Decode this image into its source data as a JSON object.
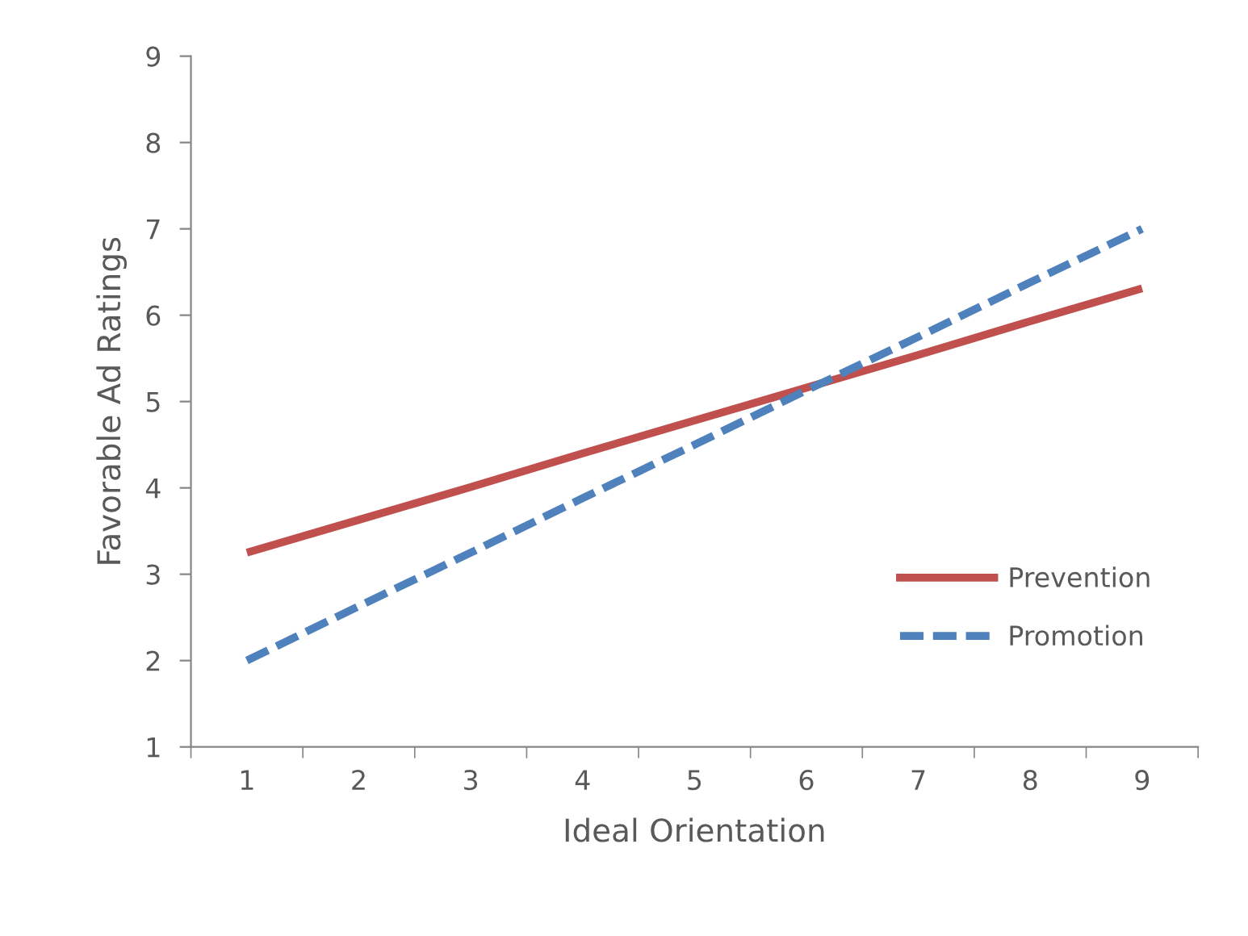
{
  "chart_data": {
    "type": "line",
    "xlabel": "Ideal Orientation",
    "ylabel": "Favorable Ad Ratings",
    "categories": [
      "1",
      "2",
      "3",
      "4",
      "5",
      "6",
      "7",
      "8",
      "9"
    ],
    "series": [
      {
        "name": "Prevention",
        "color": "#c0504d",
        "line_style": "solid",
        "values": [
          3.25,
          3.63,
          4.01,
          4.4,
          4.78,
          5.16,
          5.54,
          5.93,
          6.31
        ]
      },
      {
        "name": "Promotion",
        "color": "#4f81bd",
        "line_style": "dashed",
        "values": [
          2.0,
          2.63,
          3.25,
          3.88,
          4.5,
          5.13,
          5.75,
          6.38,
          7.0
        ]
      }
    ],
    "ylim": [
      1,
      9
    ],
    "yticks": [
      1,
      2,
      3,
      4,
      5,
      6,
      7,
      8,
      9
    ],
    "grid": false,
    "legend": "right",
    "marker": "none"
  }
}
